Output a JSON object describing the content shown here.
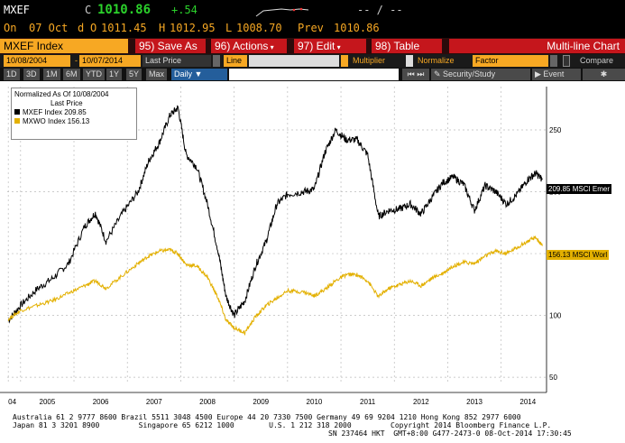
{
  "quote": {
    "ticker": "MXEF",
    "last_prefix": "C",
    "last": "1010.86",
    "change": "+.54",
    "dash": "-- / --",
    "on_label": "On",
    "date": "07 Oct",
    "d_label": "d",
    "open_label": "O",
    "open": "1011.45",
    "high_label": "H",
    "high": "1012.95",
    "low_label": "L",
    "low": "1008.70",
    "prev_label": "Prev",
    "prev": "1010.86"
  },
  "toolbar": {
    "security": "MXEF Index",
    "save_as": "95) Save As",
    "actions": "96) Actions",
    "edit": "97) Edit",
    "table": "98) Table",
    "title": "Multi-line Chart"
  },
  "settings": {
    "start_date": "10/08/2004",
    "end_date": "10/07/2014",
    "field": "Last Price",
    "style": "Line",
    "multiplier": "Multiplier",
    "normalize": "Normalize",
    "factor": "Factor",
    "compare": "Compare"
  },
  "ranges": {
    "items": [
      "1D",
      "3D",
      "1M",
      "6M",
      "YTD",
      "1Y",
      "5Y",
      "Max"
    ],
    "frequency": "Daily",
    "security_study": "Security/Study",
    "event": "Event"
  },
  "legend": {
    "title": "Normalized As Of 10/08/2004",
    "subtitle": "Last Price",
    "s1": "MXEF Index  209.85",
    "s2": "MXWO Index  156.13"
  },
  "tags": {
    "s1": "209.85 MSCI Emer",
    "s2": "156.13 MSCI Worl"
  },
  "chart_data": {
    "type": "line",
    "x_ticks": [
      "04",
      "2005",
      "2006",
      "2007",
      "2008",
      "2009",
      "2010",
      "2011",
      "2012",
      "2013",
      "2014"
    ],
    "y_ticks": [
      50,
      100,
      150,
      200,
      250
    ],
    "ylim": [
      45,
      285
    ],
    "series": [
      {
        "name": "MXEF Index",
        "color": "#000000",
        "x": [
          2004.77,
          2005.0,
          2005.3,
          2005.6,
          2005.9,
          2006.2,
          2006.4,
          2006.6,
          2006.9,
          2007.2,
          2007.4,
          2007.6,
          2007.8,
          2007.95,
          2008.1,
          2008.3,
          2008.5,
          2008.7,
          2008.85,
          2009.0,
          2009.2,
          2009.4,
          2009.6,
          2009.8,
          2010.0,
          2010.3,
          2010.5,
          2010.7,
          2010.9,
          2011.1,
          2011.3,
          2011.5,
          2011.7,
          2011.9,
          2012.1,
          2012.3,
          2012.5,
          2012.7,
          2012.9,
          2013.1,
          2013.3,
          2013.5,
          2013.7,
          2013.9,
          2014.1,
          2014.3,
          2014.5,
          2014.65,
          2014.77
        ],
        "y": [
          96,
          108,
          121,
          130,
          142,
          172,
          183,
          160,
          182,
          200,
          225,
          240,
          262,
          268,
          230,
          220,
          190,
          152,
          115,
          100,
          112,
          140,
          160,
          190,
          198,
          200,
          202,
          232,
          250,
          242,
          242,
          230,
          180,
          185,
          186,
          190,
          182,
          195,
          207,
          212,
          206,
          185,
          205,
          200,
          190,
          198,
          210,
          215,
          209.85
        ]
      },
      {
        "name": "MXWO Index",
        "color": "#e3b000",
        "x": [
          2004.77,
          2005.0,
          2005.3,
          2005.6,
          2005.9,
          2006.2,
          2006.4,
          2006.6,
          2006.9,
          2007.2,
          2007.4,
          2007.6,
          2007.8,
          2007.95,
          2008.1,
          2008.3,
          2008.5,
          2008.7,
          2008.85,
          2009.0,
          2009.2,
          2009.4,
          2009.6,
          2009.8,
          2010.0,
          2010.3,
          2010.5,
          2010.7,
          2010.9,
          2011.1,
          2011.3,
          2011.5,
          2011.7,
          2011.9,
          2012.1,
          2012.3,
          2012.5,
          2012.7,
          2012.9,
          2013.1,
          2013.3,
          2013.5,
          2013.7,
          2013.9,
          2014.1,
          2014.3,
          2014.5,
          2014.65,
          2014.77
        ],
        "y": [
          97,
          104,
          108,
          112,
          118,
          124,
          128,
          122,
          132,
          142,
          148,
          152,
          153,
          150,
          141,
          140,
          131,
          114,
          96,
          90,
          86,
          99,
          108,
          114,
          120,
          119,
          116,
          121,
          128,
          133,
          133,
          128,
          115,
          122,
          125,
          128,
          124,
          130,
          134,
          140,
          143,
          142,
          148,
          152,
          150,
          155,
          160,
          163,
          156.13
        ]
      }
    ]
  }
}
